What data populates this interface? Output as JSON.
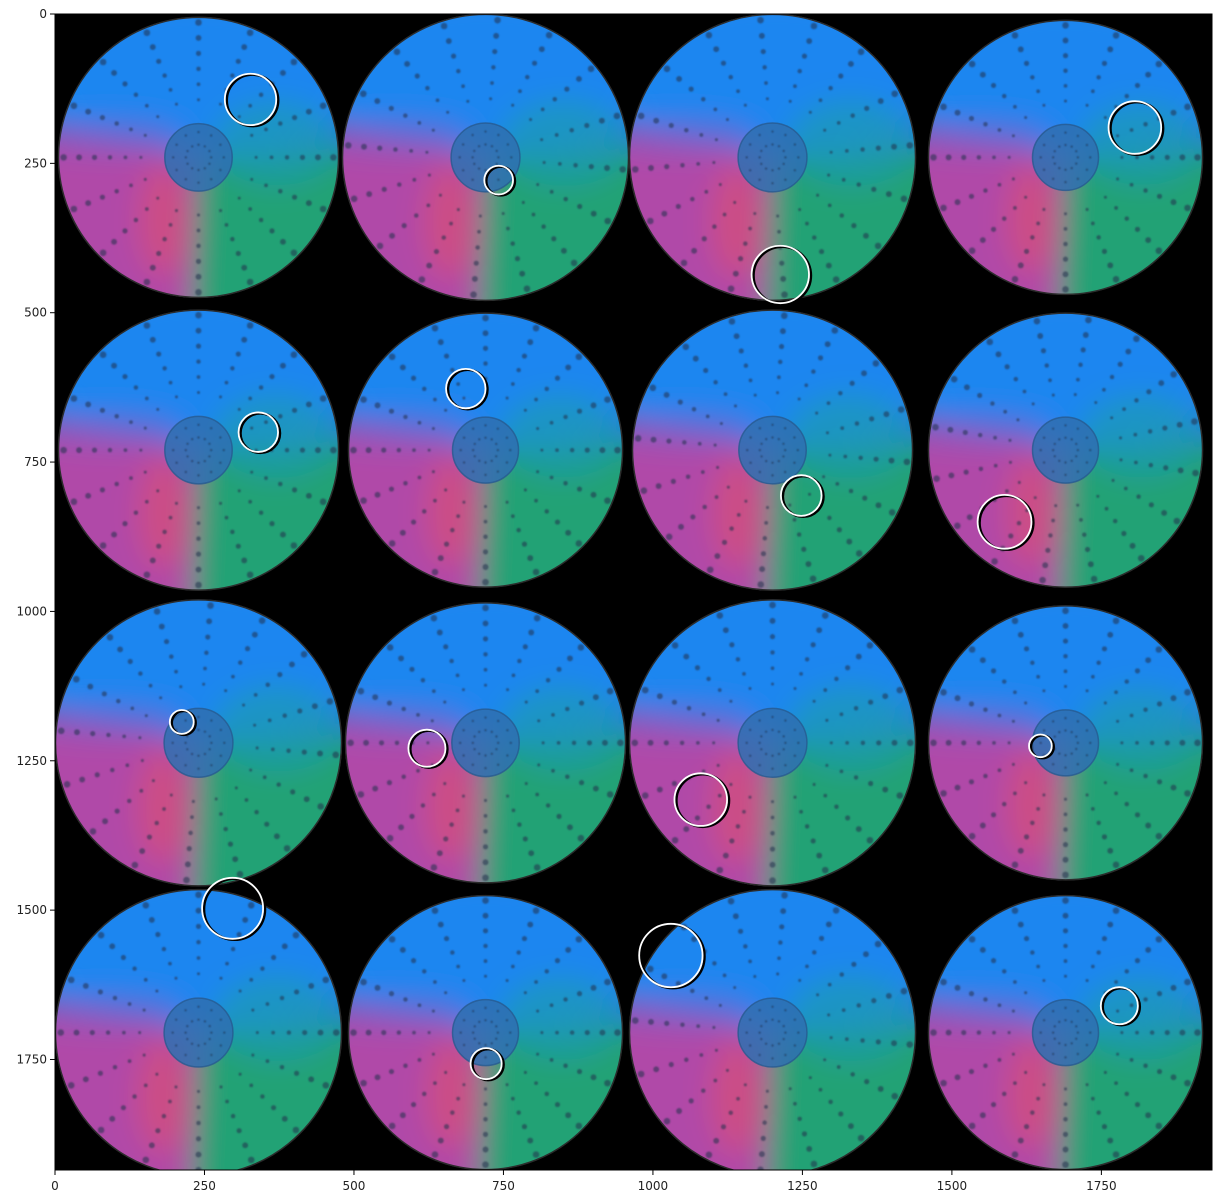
{
  "chart_data": {
    "type": "image",
    "title": "",
    "xlabel": "",
    "ylabel": "",
    "xlim": [
      0,
      1935
    ],
    "ylim": [
      1935,
      0
    ],
    "x_ticks": [
      0,
      250,
      500,
      750,
      1000,
      1250,
      1500,
      1750
    ],
    "y_ticks": [
      0,
      250,
      500,
      750,
      1000,
      1250,
      1500,
      1750
    ],
    "background_color": "#000000",
    "grid": false,
    "legend": "none",
    "tiles": [
      {
        "row": 0,
        "col": 0,
        "cx": 240,
        "cy": 240,
        "r": 235,
        "hue_shift": 0,
        "marker": {
          "x": 327,
          "y": 143,
          "r": 43
        }
      },
      {
        "row": 0,
        "col": 1,
        "cx": 720,
        "cy": 240,
        "r": 240,
        "hue_shift": 5,
        "marker": {
          "x": 742,
          "y": 278,
          "r": 24
        }
      },
      {
        "row": 0,
        "col": 2,
        "cx": 1200,
        "cy": 240,
        "r": 240,
        "hue_shift": -5,
        "marker": {
          "x": 1213,
          "y": 436,
          "r": 48
        }
      },
      {
        "row": 0,
        "col": 3,
        "cx": 1690,
        "cy": 240,
        "r": 230,
        "hue_shift": 0,
        "marker": {
          "x": 1806,
          "y": 190,
          "r": 44
        }
      },
      {
        "row": 1,
        "col": 0,
        "cx": 240,
        "cy": 730,
        "r": 235,
        "hue_shift": 0,
        "marker": {
          "x": 340,
          "y": 700,
          "r": 33
        }
      },
      {
        "row": 1,
        "col": 1,
        "cx": 720,
        "cy": 730,
        "r": 230,
        "hue_shift": 0,
        "marker": {
          "x": 687,
          "y": 627,
          "r": 33
        }
      },
      {
        "row": 1,
        "col": 2,
        "cx": 1200,
        "cy": 730,
        "r": 235,
        "hue_shift": 5,
        "marker": {
          "x": 1248,
          "y": 806,
          "r": 34
        }
      },
      {
        "row": 1,
        "col": 3,
        "cx": 1690,
        "cy": 730,
        "r": 230,
        "hue_shift": 10,
        "marker": {
          "x": 1588,
          "y": 850,
          "r": 45
        }
      },
      {
        "row": 2,
        "col": 0,
        "cx": 240,
        "cy": 1220,
        "r": 240,
        "hue_shift": 5,
        "marker": {
          "x": 212,
          "y": 1185,
          "r": 20
        }
      },
      {
        "row": 2,
        "col": 1,
        "cx": 720,
        "cy": 1220,
        "r": 235,
        "hue_shift": 0,
        "marker": {
          "x": 622,
          "y": 1229,
          "r": 31
        }
      },
      {
        "row": 2,
        "col": 2,
        "cx": 1200,
        "cy": 1220,
        "r": 240,
        "hue_shift": 0,
        "marker": {
          "x": 1080,
          "y": 1315,
          "r": 44
        }
      },
      {
        "row": 2,
        "col": 3,
        "cx": 1690,
        "cy": 1220,
        "r": 230,
        "hue_shift": 0,
        "marker": {
          "x": 1648,
          "y": 1225,
          "r": 19
        }
      },
      {
        "row": 3,
        "col": 0,
        "cx": 240,
        "cy": 1705,
        "r": 240,
        "hue_shift": 0,
        "marker": {
          "x": 297,
          "y": 1497,
          "r": 51
        }
      },
      {
        "row": 3,
        "col": 1,
        "cx": 720,
        "cy": 1705,
        "r": 230,
        "hue_shift": 0,
        "marker": {
          "x": 721,
          "y": 1757,
          "r": 26
        }
      },
      {
        "row": 3,
        "col": 2,
        "cx": 1200,
        "cy": 1705,
        "r": 240,
        "hue_shift": 5,
        "marker": {
          "x": 1030,
          "y": 1576,
          "r": 53
        }
      },
      {
        "row": 3,
        "col": 3,
        "cx": 1690,
        "cy": 1705,
        "r": 230,
        "hue_shift": 0,
        "marker": {
          "x": 1780,
          "y": 1660,
          "r": 31
        }
      }
    ]
  }
}
